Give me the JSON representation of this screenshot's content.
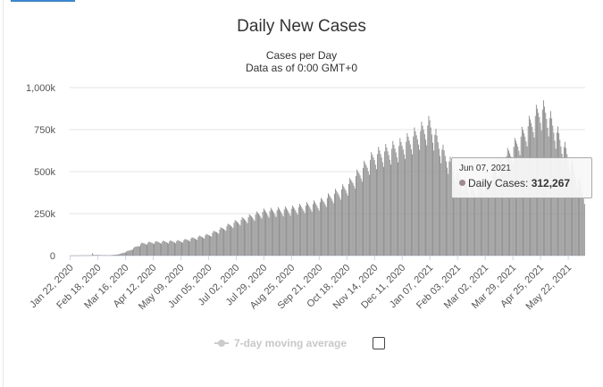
{
  "chart_data": {
    "type": "bar",
    "title": "Daily New Cases",
    "subtitle_lines": [
      "Cases per Day",
      "Data as of 0:00 GMT+0"
    ],
    "ylim": [
      0,
      1000000
    ],
    "y_ticks": [
      0,
      250000,
      500000,
      750000,
      1000000
    ],
    "y_tick_labels": [
      "0",
      "250k",
      "500k",
      "750k",
      "1,000k"
    ],
    "x_start": "2020-01-22",
    "x_end": "2021-06-07",
    "x_tick_dates": [
      "2020-01-22",
      "2020-02-18",
      "2020-03-16",
      "2020-04-12",
      "2020-05-09",
      "2020-06-05",
      "2020-07-02",
      "2020-07-29",
      "2020-08-25",
      "2020-09-21",
      "2020-10-18",
      "2020-11-14",
      "2020-12-11",
      "2021-01-07",
      "2021-02-03",
      "2021-03-02",
      "2021-03-29",
      "2021-04-25",
      "2021-05-22"
    ],
    "x_tick_labels": [
      "Jan 22, 2020",
      "Feb 18, 2020",
      "Mar 16, 2020",
      "Apr 12, 2020",
      "May 09, 2020",
      "Jun 05, 2020",
      "Jul 02, 2020",
      "Jul 29, 2020",
      "Aug 25, 2020",
      "Sep 21, 2020",
      "Oct 18, 2020",
      "Nov 14, 2020",
      "Dec 11, 2020",
      "Jan 07, 2021",
      "Feb 03, 2021",
      "Mar 02, 2021",
      "Mar 29, 2021",
      "Apr 25, 2021",
      "May 22, 2021"
    ],
    "series": [
      {
        "name": "Daily Cases",
        "trend_points": [
          [
            "2020-01-22",
            600
          ],
          [
            "2020-02-12",
            2000
          ],
          [
            "2020-02-13",
            15000
          ],
          [
            "2020-02-14",
            4000
          ],
          [
            "2020-03-01",
            2000
          ],
          [
            "2020-03-10",
            8000
          ],
          [
            "2020-03-20",
            30000
          ],
          [
            "2020-04-01",
            70000
          ],
          [
            "2020-04-12",
            78000
          ],
          [
            "2020-05-09",
            85000
          ],
          [
            "2020-06-05",
            120000
          ],
          [
            "2020-07-02",
            195000
          ],
          [
            "2020-07-29",
            255000
          ],
          [
            "2020-08-25",
            270000
          ],
          [
            "2020-09-21",
            305000
          ],
          [
            "2020-10-18",
            400000
          ],
          [
            "2020-11-14",
            580000
          ],
          [
            "2020-12-11",
            640000
          ],
          [
            "2021-01-07",
            760000
          ],
          [
            "2021-01-20",
            600000
          ],
          [
            "2021-02-03",
            470000
          ],
          [
            "2021-02-18",
            380000
          ],
          [
            "2021-03-02",
            420000
          ],
          [
            "2021-03-29",
            620000
          ],
          [
            "2021-04-25",
            850000
          ],
          [
            "2021-05-01",
            830000
          ],
          [
            "2021-05-22",
            580000
          ],
          [
            "2021-06-07",
            350000
          ]
        ]
      }
    ],
    "bar_color": "#8c8c8c",
    "grid": true
  },
  "tooltip": {
    "date": "Jun 07, 2021",
    "series_label": "Daily Cases: ",
    "value": "312,267",
    "marker_color": "#9e8a8a"
  },
  "legend": {
    "label": "7-day moving average",
    "checked": false
  }
}
